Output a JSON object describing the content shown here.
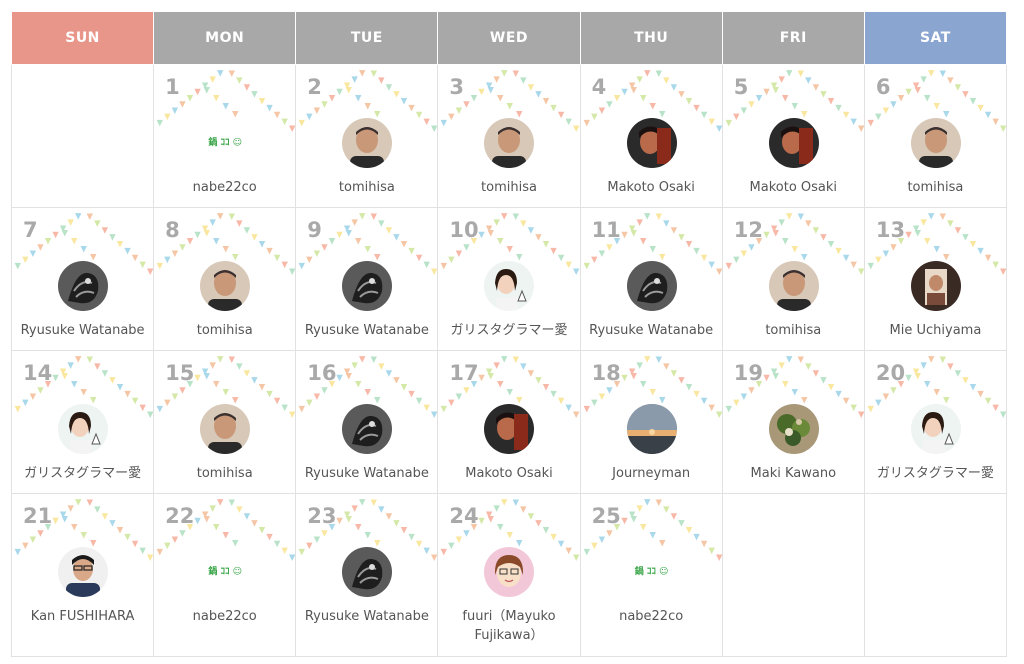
{
  "header": {
    "days": [
      {
        "label": "SUN",
        "color": "#e8968a"
      },
      {
        "label": "MON",
        "color": "#a8a8a8"
      },
      {
        "label": "TUE",
        "color": "#a8a8a8"
      },
      {
        "label": "WED",
        "color": "#a8a8a8"
      },
      {
        "label": "THU",
        "color": "#a8a8a8"
      },
      {
        "label": "FRI",
        "color": "#a8a8a8"
      },
      {
        "label": "SAT",
        "color": "#8aa5d0"
      }
    ]
  },
  "calendar": {
    "weeks": [
      [
        null,
        {
          "day": "1",
          "name": "nabe22co",
          "avatar": "logo",
          "logo_text": "鍋 ｺｺ ☺"
        },
        {
          "day": "2",
          "name": "tomihisa",
          "avatar": "tomihisa"
        },
        {
          "day": "3",
          "name": "tomihisa",
          "avatar": "tomihisa"
        },
        {
          "day": "4",
          "name": "Makoto Osaki",
          "avatar": "makoto"
        },
        {
          "day": "5",
          "name": "Makoto Osaki",
          "avatar": "makoto"
        },
        {
          "day": "6",
          "name": "tomihisa",
          "avatar": "tomihisa"
        }
      ],
      [
        {
          "day": "7",
          "name": "Ryusuke Watanabe",
          "avatar": "ryusuke"
        },
        {
          "day": "8",
          "name": "tomihisa",
          "avatar": "tomihisa"
        },
        {
          "day": "9",
          "name": "Ryusuke Watanabe",
          "avatar": "ryusuke"
        },
        {
          "day": "10",
          "name": "ガリスタグラマー愛",
          "avatar": "ai"
        },
        {
          "day": "11",
          "name": "Ryusuke Watanabe",
          "avatar": "ryusuke"
        },
        {
          "day": "12",
          "name": "tomihisa",
          "avatar": "tomihisa"
        },
        {
          "day": "13",
          "name": "Mie Uchiyama",
          "avatar": "mie"
        }
      ],
      [
        {
          "day": "14",
          "name": "ガリスタグラマー愛",
          "avatar": "ai"
        },
        {
          "day": "15",
          "name": "tomihisa",
          "avatar": "tomihisa"
        },
        {
          "day": "16",
          "name": "Ryusuke Watanabe",
          "avatar": "ryusuke"
        },
        {
          "day": "17",
          "name": "Makoto Osaki",
          "avatar": "makoto"
        },
        {
          "day": "18",
          "name": "Journeyman",
          "avatar": "journeyman"
        },
        {
          "day": "19",
          "name": "Maki Kawano",
          "avatar": "maki"
        },
        {
          "day": "20",
          "name": "ガリスタグラマー愛",
          "avatar": "ai"
        }
      ],
      [
        {
          "day": "21",
          "name": "Kan FUSHIHARA",
          "avatar": "kan"
        },
        {
          "day": "22",
          "name": "nabe22co",
          "avatar": "logo",
          "logo_text": "鍋 ｺｺ ☺"
        },
        {
          "day": "23",
          "name": "Ryusuke Watanabe",
          "avatar": "ryusuke"
        },
        {
          "day": "24",
          "name": "fuuri（Mayuko Fujikawa）",
          "avatar": "fuuri"
        },
        {
          "day": "25",
          "name": "nabe22co",
          "avatar": "logo",
          "logo_text": "鍋 ｺｺ ☺"
        },
        null,
        null
      ]
    ]
  },
  "theme": {
    "grid_border": "#e1e1e1",
    "day_number_color": "#a9a9a9",
    "name_color": "#555555",
    "bunting_colors": [
      "#f7b8a8",
      "#b8e3c8",
      "#f9e79f",
      "#a8d8ea",
      "#f5c6a5",
      "#d4e8a8"
    ]
  }
}
